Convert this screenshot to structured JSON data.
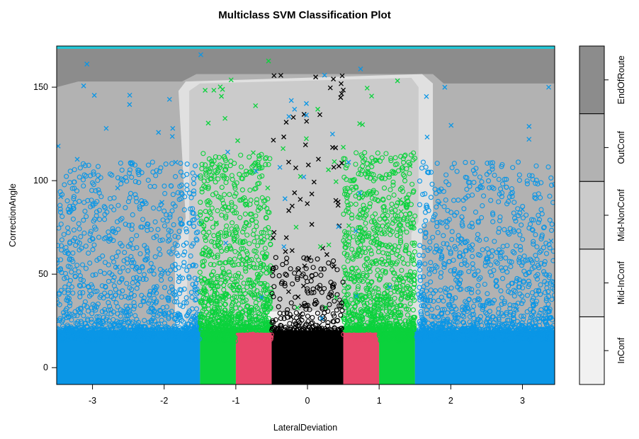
{
  "chart_data": {
    "type": "scatter",
    "title": "Multiclass SVM Classification Plot",
    "xlabel": "LateralDeviation",
    "ylabel": "CorrectionAngle",
    "xlim": [
      -3.5,
      3.45
    ],
    "ylim": [
      -9,
      172
    ],
    "x_ticks": [
      "-3",
      "-2",
      "-1",
      "0",
      "1",
      "2",
      "3"
    ],
    "y_ticks": [
      "0",
      "50",
      "100",
      "150"
    ],
    "x_tick_values": [
      -3,
      -2,
      -1,
      0,
      1,
      2,
      3
    ],
    "y_tick_values": [
      0,
      50,
      100,
      150
    ],
    "grid": false,
    "legend": {
      "placement": "right",
      "entries": [
        "InConf",
        "Mid-InConf",
        "Mid-NonConf",
        "OutConf",
        "EndOfRoute"
      ],
      "colors": [
        "#f1f1f1",
        "#e0e0e0",
        "#cbcbcb",
        "#b2b2b2",
        "#8c8c8c"
      ]
    },
    "classes": [
      {
        "name": "InConf",
        "color": "#000000",
        "x_range": [
          -0.5,
          0.5
        ],
        "y_range": [
          -9,
          20
        ]
      },
      {
        "name": "Mid-InConf",
        "color": "#e8466a",
        "x_range": [
          -1.0,
          -0.5
        ],
        "y_range": [
          -9,
          20
        ]
      },
      {
        "name": "Mid-InConf",
        "color": "#e8466a",
        "x_range": [
          0.5,
          1.0
        ],
        "y_range": [
          -9,
          20
        ]
      },
      {
        "name": "Mid-NonConf",
        "color": "#0bd23c",
        "x_range": [
          -1.5,
          -1.0
        ],
        "y_range": [
          -9,
          20
        ]
      },
      {
        "name": "Mid-NonConf",
        "color": "#0bd23c",
        "x_range": [
          1.0,
          1.5
        ],
        "y_range": [
          -9,
          20
        ]
      },
      {
        "name": "OutConf",
        "color": "#0a96e6",
        "x_range": [
          -3.5,
          -1.5
        ],
        "y_range": [
          -9,
          20
        ]
      },
      {
        "name": "OutConf",
        "color": "#0a96e6",
        "x_range": [
          1.5,
          3.45
        ],
        "y_range": [
          -9,
          20
        ]
      }
    ],
    "scatter_groups": [
      {
        "color": "#0a96e6",
        "marker": "o",
        "x_range": [
          -3.5,
          -1.5
        ],
        "y_range": [
          20,
          110
        ],
        "density": "high"
      },
      {
        "color": "#0a96e6",
        "marker": "o",
        "x_range": [
          1.55,
          3.45
        ],
        "y_range": [
          20,
          110
        ],
        "density": "high"
      },
      {
        "color": "#0bd23c",
        "marker": "o",
        "x_range": [
          -1.5,
          -0.5
        ],
        "y_range": [
          20,
          115
        ],
        "density": "high"
      },
      {
        "color": "#0bd23c",
        "marker": "o",
        "x_range": [
          0.5,
          1.5
        ],
        "y_range": [
          20,
          115
        ],
        "density": "high"
      },
      {
        "color": "#000000",
        "marker": "o",
        "x_range": [
          -0.5,
          0.5
        ],
        "y_range": [
          20,
          60
        ],
        "density": "medium"
      },
      {
        "color": "#000000",
        "marker": "x",
        "x_range": [
          -0.5,
          0.5
        ],
        "y_range": [
          20,
          170
        ],
        "density": "low"
      },
      {
        "color": "#0bd23c",
        "marker": "x",
        "x_range": [
          -1.5,
          1.5
        ],
        "y_range": [
          20,
          170
        ],
        "density": "low"
      },
      {
        "color": "#0a96e6",
        "marker": "x",
        "x_range": [
          -3.5,
          3.45
        ],
        "y_range": [
          20,
          170
        ],
        "density": "low"
      }
    ],
    "decision_regions": [
      {
        "class": "EndOfRoute",
        "color": "#8c8c8c",
        "description": "top band above ~150"
      },
      {
        "class": "OutConf",
        "color": "#b2b2b2",
        "description": "outer sides |x| > ~1.8"
      },
      {
        "class": "Mid-NonConf",
        "color": "#cbcbcb",
        "description": "central region 20-150"
      },
      {
        "class": "Mid-InConf",
        "color": "#e0e0e0",
        "description": "thin boundary around central region"
      },
      {
        "class": "InConf",
        "color": "#f1f1f1",
        "description": "small central area near y 20-30"
      }
    ]
  }
}
